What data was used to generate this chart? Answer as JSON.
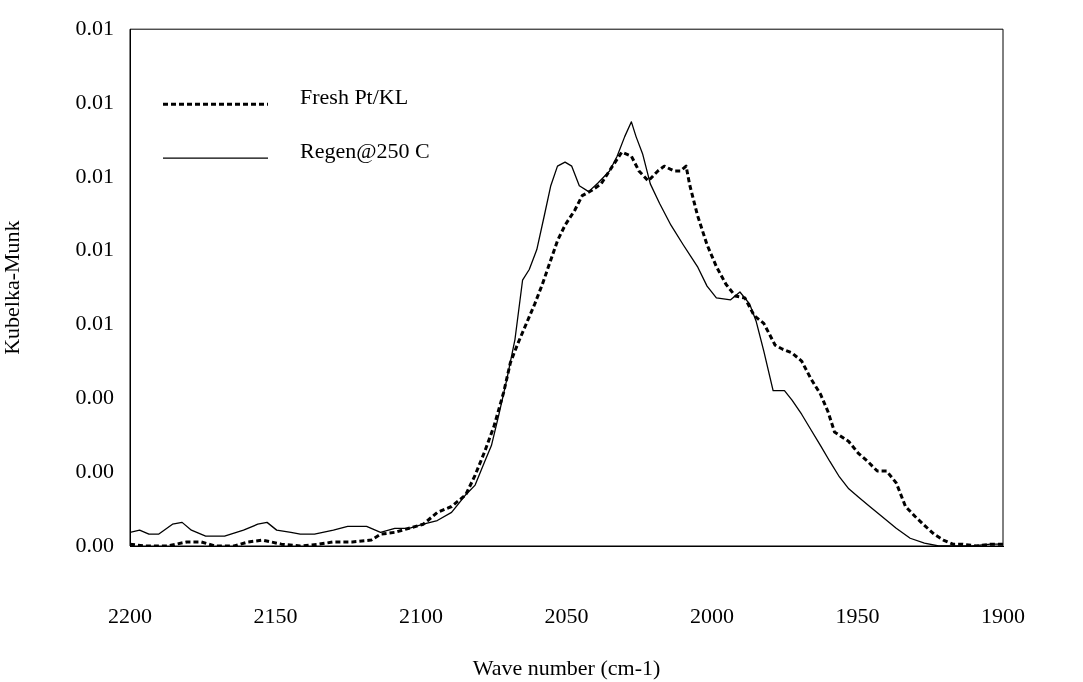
{
  "chart_data": {
    "type": "line",
    "xlabel": "Wave number (cm-1)",
    "ylabel": "Kubelka-Munk",
    "xlim": [
      2200,
      1900
    ],
    "xticks": [
      2200,
      2150,
      2100,
      2050,
      2000,
      1950,
      1900
    ],
    "ylim": [
      0,
      0.014
    ],
    "yticks": [
      {
        "value": 0,
        "label": "0.00"
      },
      {
        "value": 0.002,
        "label": "0.00"
      },
      {
        "value": 0.004,
        "label": "0.00"
      },
      {
        "value": 0.006,
        "label": "0.01"
      },
      {
        "value": 0.008,
        "label": "0.01"
      },
      {
        "value": 0.01,
        "label": "0.01"
      },
      {
        "value": 0.012,
        "label": "0.01"
      },
      {
        "value": 0.014,
        "label": "0.01"
      }
    ],
    "grid": false,
    "legend": "top left",
    "marker": "none",
    "series": [
      {
        "name": "Fresh Pt/KL",
        "color": "#000000",
        "line_style": "dotted",
        "x": [
          2200,
          2195.1,
          2187.0,
          2180.5,
          2175.6,
          2170.7,
          2164.2,
          2159.4,
          2154.5,
          2148.0,
          2141.5,
          2135.0,
          2130.1,
          2123.6,
          2117.1,
          2113.9,
          2109.0,
          2104.1,
          2099.2,
          2094.4,
          2089.5,
          2084.6,
          2081.4,
          2078.1,
          2074.9,
          2071.6,
          2069.3,
          2066.7,
          2063.5,
          2060.9,
          2058.3,
          2055.7,
          2053.1,
          2050.5,
          2047.2,
          2044.6,
          2041.4,
          2038.1,
          2034.2,
          2031.0,
          2027.7,
          2025.1,
          2021.9,
          2018.6,
          2016.4,
          2013.1,
          2010.8,
          2008.9,
          2007.6,
          2005.0,
          2001.7,
          1998.5,
          1995.2,
          1992.0,
          1988.7,
          1985.5,
          1982.2,
          1978.3,
          1975.7,
          1972.5,
          1969.2,
          1966.0,
          1962.7,
          1960.1,
          1957.9,
          1953.0,
          1949.7,
          1946.5,
          1943.2,
          1940.0,
          1936.7,
          1933.5,
          1930.2,
          1927.0,
          1923.7,
          1920.5,
          1917.2,
          1914.0,
          1909.1,
          1904.2,
          1900
        ],
        "values": [
          5e-05,
          0,
          0,
          0.00011,
          0.00011,
          0,
          0,
          0.00011,
          0.00016,
          5e-05,
          0,
          5e-05,
          0.00011,
          0.00011,
          0.00016,
          0.00032,
          0.00037,
          0.00048,
          0.00059,
          0.00091,
          0.00107,
          0.00139,
          0.00192,
          0.00256,
          0.00325,
          0.00416,
          0.00496,
          0.00549,
          0.00608,
          0.00656,
          0.00709,
          0.00768,
          0.00827,
          0.00869,
          0.00909,
          0.00949,
          0.00963,
          0.00981,
          0.01029,
          0.01067,
          0.01056,
          0.01016,
          0.00989,
          0.01016,
          0.01029,
          0.01016,
          0.01016,
          0.01029,
          0.00976,
          0.00896,
          0.00816,
          0.00757,
          0.00709,
          0.00677,
          0.00672,
          0.00624,
          0.00603,
          0.00544,
          0.00533,
          0.00523,
          0.00501,
          0.00453,
          0.00411,
          0.00363,
          0.00309,
          0.00283,
          0.00251,
          0.00229,
          0.00203,
          0.00203,
          0.00171,
          0.00107,
          0.0008,
          0.00056,
          0.00032,
          0.00016,
          5e-05,
          5e-05,
          0,
          5e-05,
          5e-05
        ]
      },
      {
        "name": "Regen@250 C",
        "color": "#000000",
        "line_style": "solid",
        "x": [
          2200,
          2196.7,
          2193.5,
          2190.2,
          2185.4,
          2182.1,
          2178.9,
          2174.0,
          2167.5,
          2161.0,
          2156.1,
          2152.9,
          2149.6,
          2144.7,
          2141.5,
          2136.6,
          2130.1,
          2125.2,
          2118.7,
          2113.9,
          2109.0,
          2104.1,
          2099.2,
          2094.4,
          2089.5,
          2084.6,
          2081.4,
          2078.1,
          2075.8,
          2073.2,
          2070.6,
          2067.7,
          2065.1,
          2062.8,
          2060.2,
          2057.6,
          2055.4,
          2053.1,
          2050.5,
          2048.2,
          2045.6,
          2042.4,
          2039.1,
          2035.2,
          2032.6,
          2030.0,
          2027.7,
          2026.1,
          2023.8,
          2021.2,
          2018.0,
          2014.1,
          2009.9,
          2005.0,
          2001.7,
          1998.5,
          1993.6,
          1990.4,
          1987.1,
          1984.8,
          1982.2,
          1979.0,
          1975.1,
          1972.5,
          1969.2,
          1966.0,
          1962.7,
          1959.5,
          1956.2,
          1953.0,
          1949.7,
          1945.8,
          1941.6,
          1936.7,
          1931.9,
          1927.0,
          1922.1,
          1917.2,
          1910.7,
          1904.2,
          1900
        ],
        "values": [
          0.00037,
          0.00043,
          0.00032,
          0.00032,
          0.00059,
          0.00064,
          0.00043,
          0.00027,
          0.00027,
          0.00043,
          0.00059,
          0.00064,
          0.00043,
          0.00037,
          0.00032,
          0.00032,
          0.00043,
          0.00053,
          0.00053,
          0.00037,
          0.00048,
          0.00048,
          0.00059,
          0.00069,
          0.00091,
          0.00139,
          0.00165,
          0.00229,
          0.00272,
          0.00357,
          0.00448,
          0.0056,
          0.0072,
          0.00749,
          0.00803,
          0.00896,
          0.00976,
          0.01029,
          0.0104,
          0.01029,
          0.00976,
          0.0096,
          0.00984,
          0.01016,
          0.01056,
          0.01109,
          0.01149,
          0.01109,
          0.01061,
          0.00981,
          0.00928,
          0.00869,
          0.00816,
          0.00757,
          0.00704,
          0.00672,
          0.00667,
          0.00688,
          0.00656,
          0.00608,
          0.00528,
          0.00421,
          0.00421,
          0.00395,
          0.00357,
          0.00315,
          0.00272,
          0.00229,
          0.00187,
          0.00155,
          0.00133,
          0.00107,
          0.0008,
          0.00048,
          0.00021,
          8e-05,
          0,
          0,
          0,
          5e-05,
          5e-05
        ]
      }
    ]
  }
}
